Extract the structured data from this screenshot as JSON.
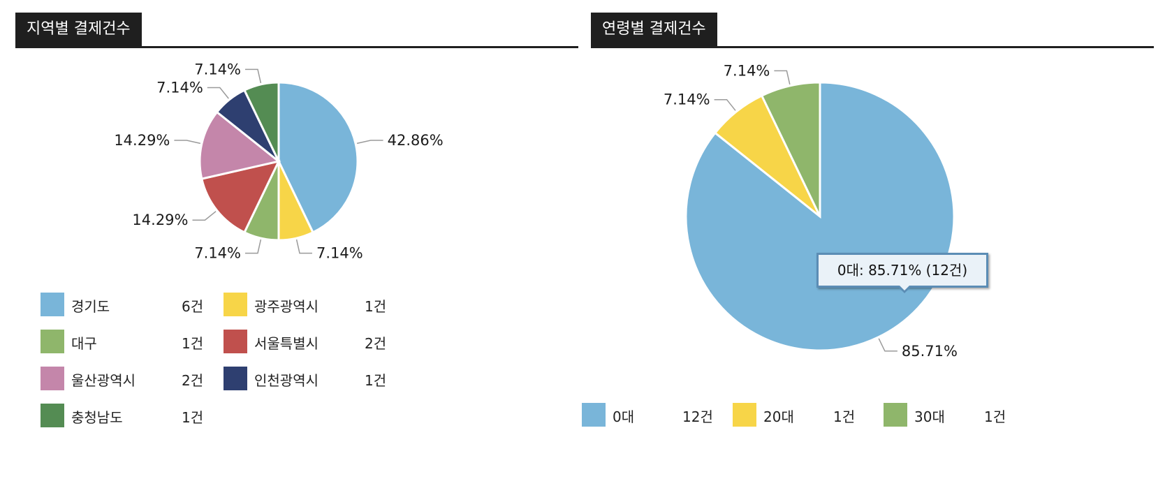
{
  "chart_data": [
    {
      "type": "pie",
      "title": "지역별 결제건수",
      "unit": "건",
      "slices": [
        {
          "label": "경기도",
          "value": 6,
          "percent": "42.86%",
          "color": "#79b5d9"
        },
        {
          "label": "광주광역시",
          "value": 1,
          "percent": "7.14%",
          "color": "#f7d548"
        },
        {
          "label": "대구",
          "value": 1,
          "percent": "7.14%",
          "color": "#8fb66b"
        },
        {
          "label": "서울특별시",
          "value": 2,
          "percent": "14.29%",
          "color": "#c0504d"
        },
        {
          "label": "울산광역시",
          "value": 2,
          "percent": "14.29%",
          "color": "#c486aa"
        },
        {
          "label": "인천광역시",
          "value": 1,
          "percent": "7.14%",
          "color": "#2e3f70"
        },
        {
          "label": "충청남도",
          "value": 1,
          "percent": "7.14%",
          "color": "#548c53"
        }
      ],
      "legend": [
        {
          "label": "경기도",
          "count": "6건",
          "color": "#79b5d9"
        },
        {
          "label": "광주광역시",
          "count": "1건",
          "color": "#f7d548"
        },
        {
          "label": "대구",
          "count": "1건",
          "color": "#8fb66b"
        },
        {
          "label": "서울특별시",
          "count": "2건",
          "color": "#c0504d"
        },
        {
          "label": "울산광역시",
          "count": "2건",
          "color": "#c486aa"
        },
        {
          "label": "인천광역시",
          "count": "1건",
          "color": "#2e3f70"
        },
        {
          "label": "충청남도",
          "count": "1건",
          "color": "#548c53"
        }
      ]
    },
    {
      "type": "pie",
      "title": "연령별 결제건수",
      "unit": "건",
      "slices": [
        {
          "label": "0대",
          "value": 12,
          "percent": "85.71%",
          "color": "#79b5d9"
        },
        {
          "label": "20대",
          "value": 1,
          "percent": "7.14%",
          "color": "#f7d548"
        },
        {
          "label": "30대",
          "value": 1,
          "percent": "7.14%",
          "color": "#8fb66b"
        }
      ],
      "legend": [
        {
          "label": "0대",
          "count": "12건",
          "color": "#79b5d9"
        },
        {
          "label": "20대",
          "count": "1건",
          "color": "#f7d548"
        },
        {
          "label": "30대",
          "count": "1건",
          "color": "#8fb66b"
        }
      ],
      "tooltip": "0대: 85.71% (12건)"
    }
  ]
}
